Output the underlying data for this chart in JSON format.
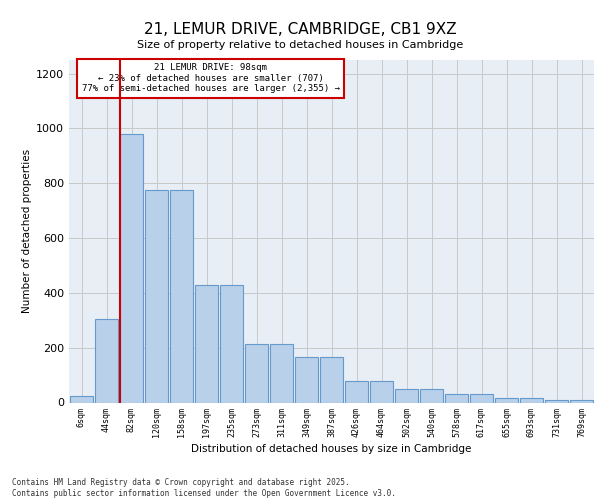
{
  "title": "21, LEMUR DRIVE, CAMBRIDGE, CB1 9XZ",
  "subtitle": "Size of property relative to detached houses in Cambridge",
  "xlabel": "Distribution of detached houses by size in Cambridge",
  "ylabel": "Number of detached properties",
  "categories": [
    "6sqm",
    "44sqm",
    "82sqm",
    "120sqm",
    "158sqm",
    "197sqm",
    "235sqm",
    "273sqm",
    "311sqm",
    "349sqm",
    "387sqm",
    "426sqm",
    "464sqm",
    "502sqm",
    "540sqm",
    "578sqm",
    "617sqm",
    "655sqm",
    "693sqm",
    "731sqm",
    "769sqm"
  ],
  "values": [
    25,
    305,
    980,
    775,
    775,
    430,
    430,
    215,
    215,
    165,
    165,
    80,
    80,
    50,
    50,
    30,
    30,
    15,
    15,
    10,
    10
  ],
  "bar_color": "#b8d0ea",
  "bar_edge_color": "#6699cc",
  "grid_color": "#c8c8c8",
  "bg_color": "#e8eef6",
  "annotation_text": "21 LEMUR DRIVE: 98sqm\n← 23% of detached houses are smaller (707)\n77% of semi-detached houses are larger (2,355) →",
  "vline_color": "#cc0000",
  "annotation_box_color": "#cc0000",
  "ylim": [
    0,
    1250
  ],
  "yticks": [
    0,
    200,
    400,
    600,
    800,
    1000,
    1200
  ],
  "footer_line1": "Contains HM Land Registry data © Crown copyright and database right 2025.",
  "footer_line2": "Contains public sector information licensed under the Open Government Licence v3.0."
}
